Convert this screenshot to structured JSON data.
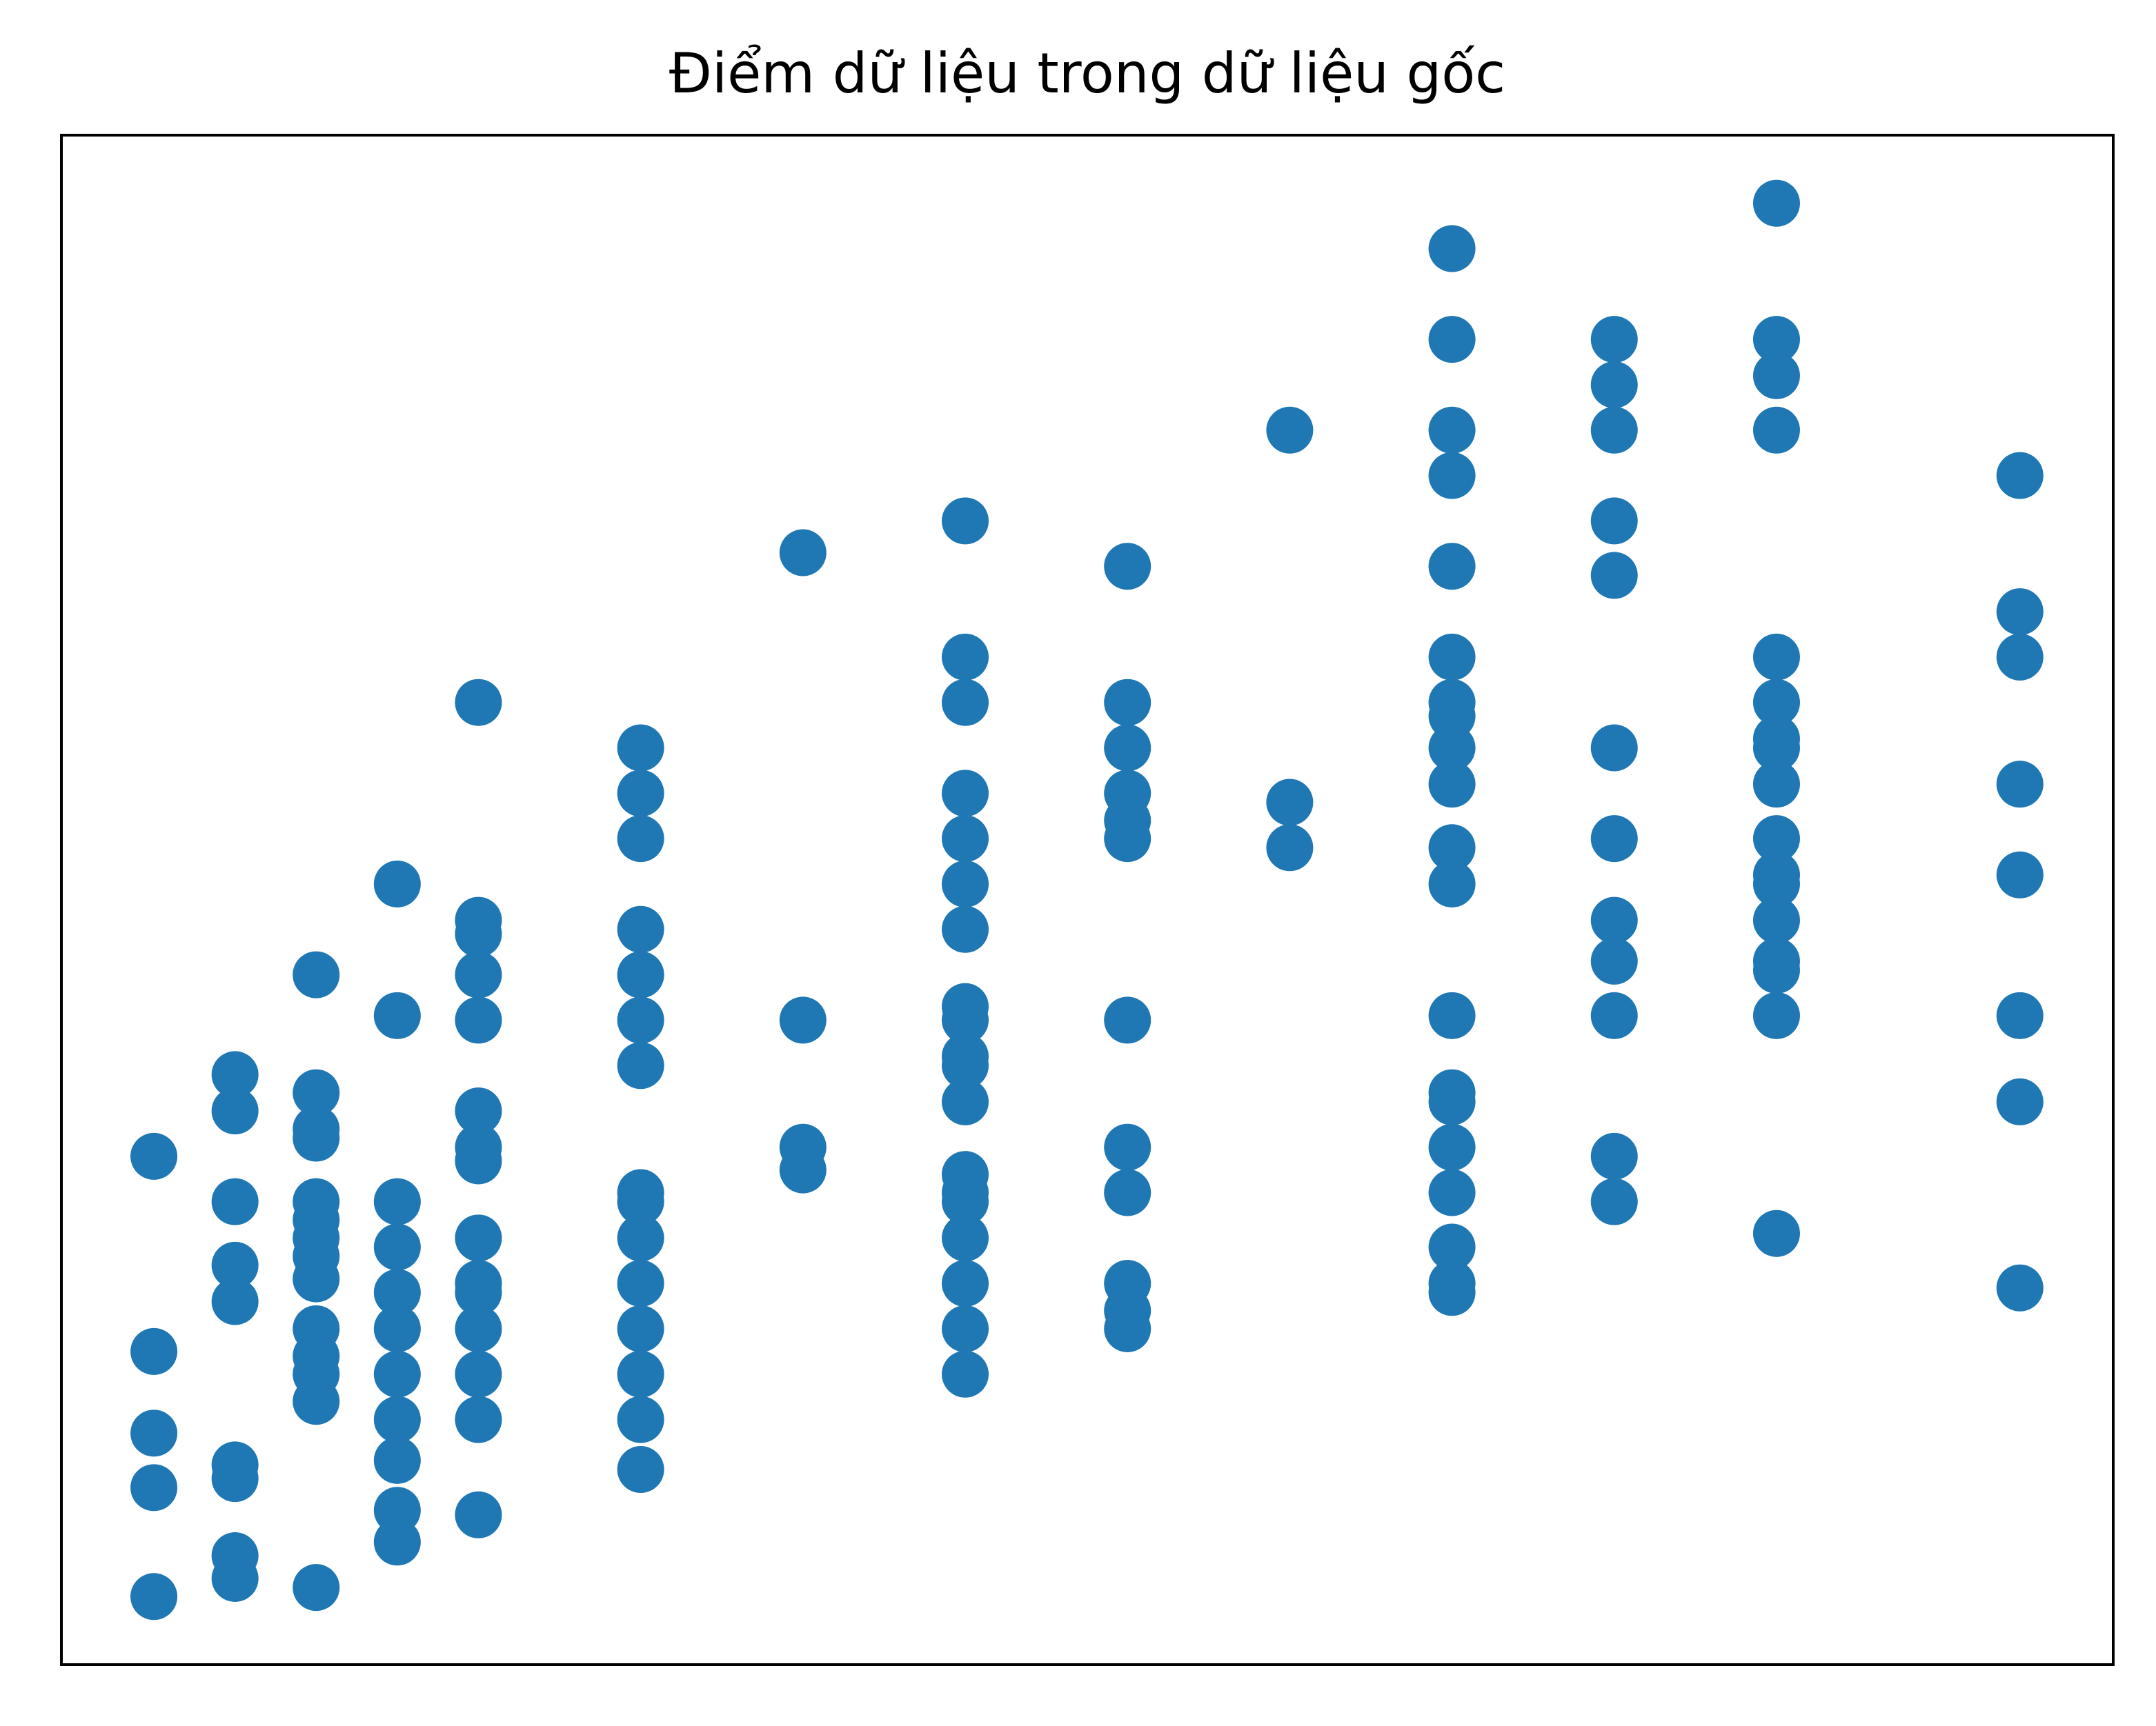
{
  "chart_data": {
    "type": "scatter",
    "title": "Điểm dữ liệu trong dữ liệu gốc",
    "color": "#1f77b4",
    "xlim": [
      -0.14,
      25.15
    ],
    "ylim": [
      0,
      33.7
    ],
    "x": [
      1,
      1,
      1,
      1,
      1,
      2,
      2,
      2,
      2,
      2,
      2,
      2,
      2,
      2,
      3,
      3,
      3,
      3,
      3,
      3,
      3,
      3,
      3,
      3,
      3,
      3,
      3,
      3,
      4,
      4,
      4,
      4,
      4,
      4,
      4,
      4,
      4,
      4,
      4,
      5,
      5,
      5,
      5,
      5,
      5,
      5,
      5,
      5,
      5,
      5,
      5,
      5,
      5,
      5,
      7,
      7,
      7,
      7,
      7,
      7,
      7,
      7,
      7,
      7,
      7,
      7,
      7,
      7,
      7,
      9,
      9,
      9,
      9,
      11,
      11,
      11,
      11,
      11,
      11,
      11,
      11,
      11,
      11,
      11,
      11,
      11,
      11,
      11,
      11,
      11,
      11,
      11,
      13,
      13,
      13,
      13,
      13,
      13,
      13,
      13,
      13,
      13,
      13,
      13,
      15,
      15,
      15,
      17,
      17,
      17,
      17,
      17,
      17,
      17,
      17,
      17,
      17,
      17,
      17,
      17,
      17,
      17,
      17,
      17,
      17,
      17,
      17,
      19,
      19,
      19,
      19,
      19,
      19,
      19,
      19,
      19,
      19,
      19,
      19,
      21,
      21,
      21,
      21,
      21,
      21,
      21,
      21,
      21,
      21,
      21,
      21,
      21,
      21,
      21,
      21,
      21,
      24,
      24,
      24,
      24,
      24,
      24,
      24,
      24
    ],
    "y": [
      11.2,
      6.9,
      5.1,
      3.9,
      1.5,
      13.0,
      12.2,
      10.2,
      8.8,
      8.0,
      4.4,
      4.1,
      2.4,
      1.9,
      15.2,
      12.6,
      11.8,
      11.6,
      10.2,
      9.8,
      9.4,
      9.0,
      8.5,
      7.4,
      6.8,
      6.4,
      5.8,
      1.7,
      17.2,
      14.3,
      10.2,
      9.2,
      8.2,
      7.4,
      6.4,
      5.4,
      4.5,
      3.4,
      2.7,
      21.2,
      16.4,
      16.1,
      15.2,
      14.2,
      12.2,
      11.4,
      11.1,
      9.4,
      8.4,
      8.2,
      7.4,
      6.4,
      5.4,
      3.3,
      20.2,
      19.2,
      18.2,
      16.2,
      15.2,
      14.2,
      13.2,
      10.4,
      10.2,
      9.4,
      8.4,
      7.4,
      6.4,
      5.4,
      4.3,
      24.5,
      14.2,
      11.4,
      10.9,
      25.2,
      22.2,
      21.2,
      19.2,
      18.2,
      17.2,
      16.2,
      14.5,
      14.2,
      13.4,
      13.2,
      12.4,
      10.8,
      10.4,
      10.2,
      9.4,
      8.4,
      7.4,
      6.4,
      24.2,
      21.2,
      20.2,
      19.2,
      18.6,
      18.2,
      14.2,
      11.4,
      10.4,
      8.4,
      7.8,
      7.4,
      27.2,
      19.0,
      18.0,
      31.2,
      29.2,
      27.2,
      26.2,
      24.2,
      22.2,
      21.2,
      20.9,
      20.2,
      19.4,
      18.0,
      17.2,
      14.3,
      12.6,
      12.4,
      11.4,
      10.4,
      9.2,
      8.4,
      8.2,
      29.2,
      28.2,
      27.2,
      25.2,
      24.0,
      20.2,
      18.2,
      16.4,
      15.5,
      14.3,
      11.2,
      10.2,
      32.2,
      29.2,
      28.4,
      27.2,
      22.2,
      21.2,
      20.4,
      20.2,
      19.4,
      18.2,
      17.4,
      17.2,
      16.4,
      15.5,
      15.3,
      14.3,
      9.5,
      26.2,
      23.2,
      22.2,
      19.4,
      17.4,
      14.3,
      12.4,
      8.3
    ]
  }
}
